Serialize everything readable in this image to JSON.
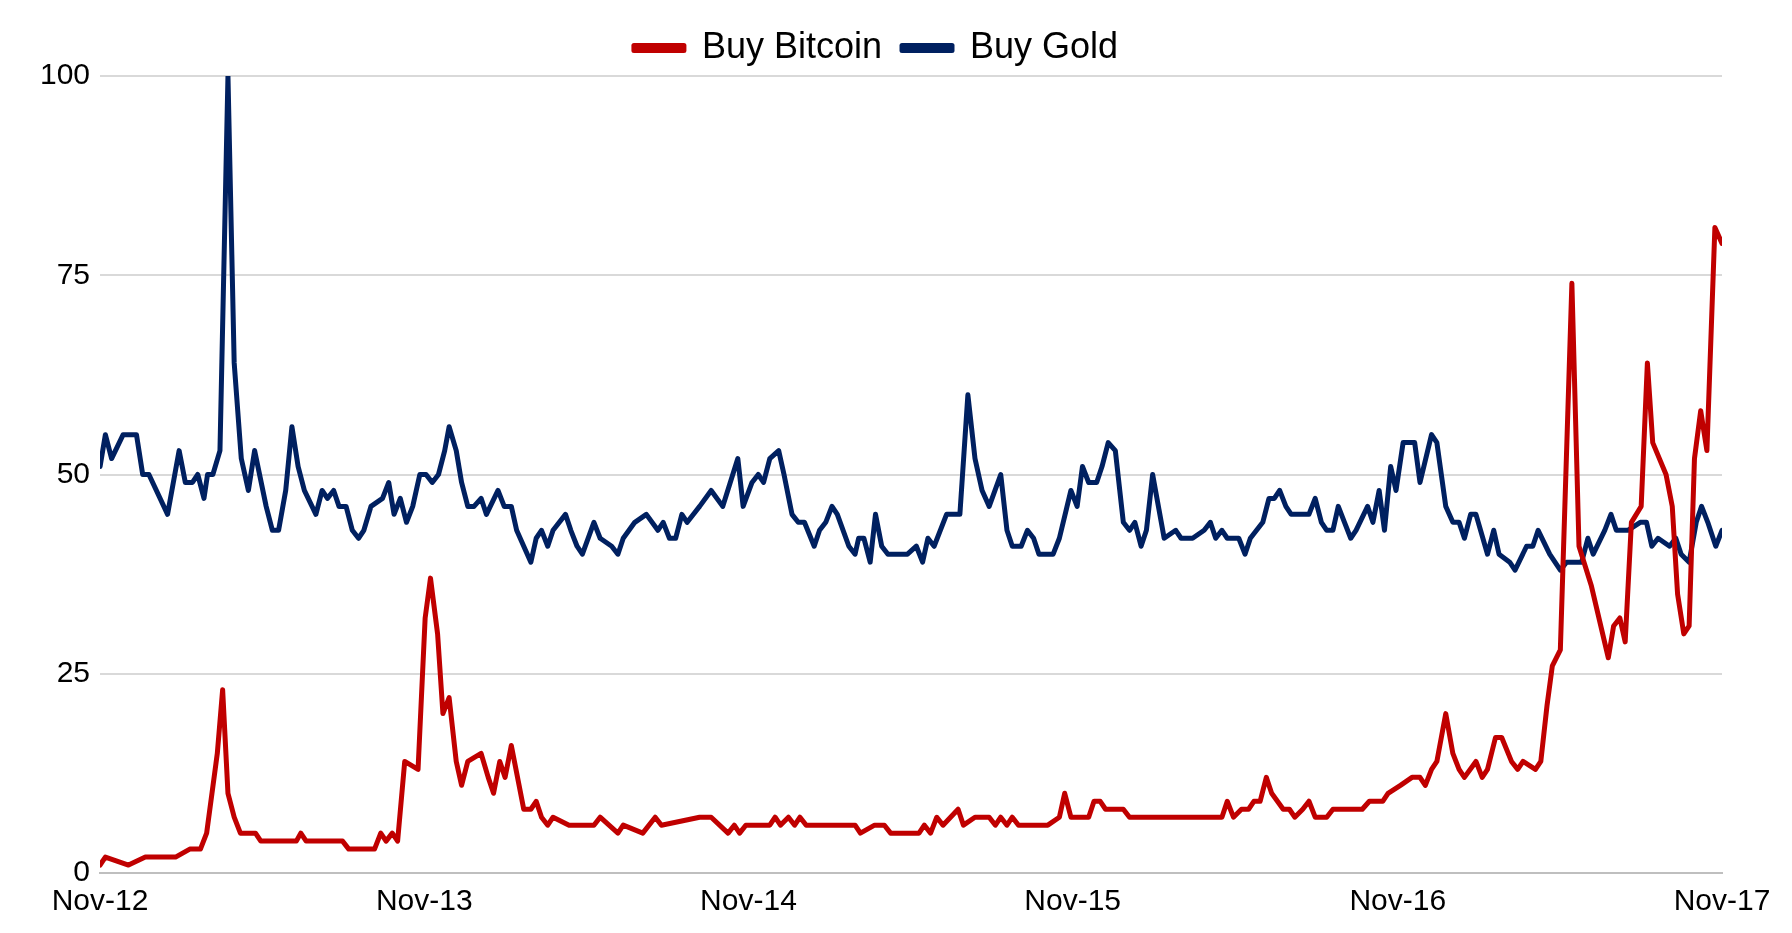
{
  "chart_data": {
    "type": "line",
    "ylim": [
      0,
      100
    ],
    "yticks": [
      0,
      25,
      50,
      75,
      100
    ],
    "xlim": [
      "2012-11-01",
      "2017-11-01"
    ],
    "xticks": [
      {
        "value": "2012-11-01",
        "label": "Nov-12"
      },
      {
        "value": "2013-11-01",
        "label": "Nov-13"
      },
      {
        "value": "2014-11-01",
        "label": "Nov-14"
      },
      {
        "value": "2015-11-01",
        "label": "Nov-15"
      },
      {
        "value": "2016-11-01",
        "label": "Nov-16"
      },
      {
        "value": "2017-11-01",
        "label": "Nov-17"
      }
    ],
    "grid": "y",
    "legend": "top",
    "marker": "none",
    "line_style": "solid",
    "series": [
      {
        "name": "Buy Bitcoin",
        "color": "#c00000",
        "x": [
          "2012-11-01",
          "2012-11-07",
          "2012-12-03",
          "2012-12-22",
          "2013-01-05",
          "2013-01-25",
          "2013-02-10",
          "2013-02-22",
          "2013-03-01",
          "2013-03-13",
          "2013-03-19",
          "2013-03-25",
          "2013-04-01",
          "2013-04-08",
          "2013-04-25",
          "2013-05-01",
          "2013-06-10",
          "2013-06-15",
          "2013-06-21",
          "2013-08-01",
          "2013-08-08",
          "2013-09-06",
          "2013-09-13",
          "2013-09-19",
          "2013-09-26",
          "2013-10-02",
          "2013-10-10",
          "2013-10-25",
          "2013-11-02",
          "2013-11-08",
          "2013-11-16",
          "2013-11-22",
          "2013-11-29",
          "2013-12-07",
          "2013-12-13",
          "2013-12-20",
          "2014-01-04",
          "2014-01-12",
          "2014-01-18",
          "2014-01-25",
          "2014-01-31",
          "2014-02-07",
          "2014-02-21",
          "2014-03-01",
          "2014-03-07",
          "2014-03-13",
          "2014-03-20",
          "2014-03-26",
          "2014-04-13",
          "2014-05-11",
          "2014-05-18",
          "2014-06-07",
          "2014-06-13",
          "2014-07-05",
          "2014-07-19",
          "2014-07-26",
          "2014-09-07",
          "2014-09-20",
          "2014-10-09",
          "2014-10-16",
          "2014-10-22",
          "2014-10-29",
          "2014-11-25",
          "2014-12-01",
          "2014-12-07",
          "2014-12-16",
          "2014-12-23",
          "2014-12-29",
          "2015-01-05",
          "2015-03-01",
          "2015-03-07",
          "2015-03-23",
          "2015-04-03",
          "2015-04-10",
          "2015-05-12",
          "2015-05-18",
          "2015-05-25",
          "2015-06-01",
          "2015-06-08",
          "2015-06-25",
          "2015-07-01",
          "2015-07-14",
          "2015-07-30",
          "2015-08-06",
          "2015-08-12",
          "2015-08-19",
          "2015-08-25",
          "2015-09-01",
          "2015-10-04",
          "2015-10-17",
          "2015-10-23",
          "2015-10-30",
          "2015-11-19",
          "2015-11-25",
          "2015-12-02",
          "2015-12-08",
          "2015-12-28",
          "2016-01-04",
          "2016-04-17",
          "2016-04-23",
          "2016-04-30",
          "2016-05-09",
          "2016-05-17",
          "2016-05-23",
          "2016-05-30",
          "2016-06-06",
          "2016-06-12",
          "2016-06-25",
          "2016-07-02",
          "2016-07-08",
          "2016-07-17",
          "2016-07-24",
          "2016-07-31",
          "2016-08-13",
          "2016-08-20",
          "2016-09-22",
          "2016-09-30",
          "2016-10-15",
          "2016-10-21",
          "2016-11-04",
          "2016-11-17",
          "2016-11-26",
          "2016-12-02",
          "2016-12-09",
          "2016-12-15",
          "2016-12-25",
          "2017-01-02",
          "2017-01-09",
          "2017-01-15",
          "2017-01-28",
          "2017-02-04",
          "2017-02-10",
          "2017-02-19",
          "2017-02-26",
          "2017-03-09",
          "2017-03-16",
          "2017-03-22",
          "2017-04-05",
          "2017-04-11",
          "2017-04-18",
          "2017-04-24",
          "2017-05-03",
          "2017-05-16",
          "2017-05-24",
          "2017-06-07",
          "2017-06-26",
          "2017-07-02",
          "2017-07-09",
          "2017-07-15",
          "2017-07-22",
          "2017-08-02",
          "2017-08-09",
          "2017-08-15",
          "2017-08-30",
          "2017-09-06",
          "2017-09-12",
          "2017-09-19",
          "2017-09-25",
          "2017-10-01",
          "2017-10-08",
          "2017-10-15",
          "2017-10-24",
          "2017-11-01"
        ],
        "values": [
          1,
          2,
          1,
          2,
          2,
          2,
          3,
          3,
          5,
          15,
          23,
          10,
          7,
          5,
          5,
          4,
          4,
          5,
          4,
          4,
          3,
          3,
          5,
          4,
          5,
          4,
          14,
          13,
          32,
          37,
          30,
          20,
          22,
          14,
          11,
          14,
          15,
          12,
          10,
          14,
          12,
          16,
          8,
          8,
          9,
          7,
          6,
          7,
          6,
          6,
          7,
          5,
          6,
          5,
          7,
          6,
          7,
          7,
          5,
          6,
          5,
          6,
          6,
          7,
          6,
          7,
          6,
          7,
          6,
          6,
          5,
          6,
          6,
          5,
          5,
          6,
          5,
          7,
          6,
          8,
          6,
          7,
          7,
          6,
          7,
          6,
          7,
          6,
          6,
          7,
          10,
          7,
          7,
          9,
          9,
          8,
          8,
          7,
          7,
          9,
          7,
          8,
          8,
          9,
          9,
          12,
          10,
          8,
          8,
          7,
          8,
          9,
          7,
          7,
          8,
          8,
          9,
          9,
          10,
          11,
          12,
          12,
          11,
          13,
          14,
          20,
          15,
          13,
          12,
          14,
          12,
          13,
          17,
          17,
          14,
          13,
          14,
          13,
          14,
          21,
          26,
          28,
          74,
          41,
          36,
          27,
          31,
          32,
          29,
          44,
          46,
          64,
          54,
          50,
          46,
          35,
          30,
          31,
          52,
          58,
          53,
          81,
          79
        ]
      },
      {
        "name": "Buy Gold",
        "color": "#002060",
        "x": [
          "2012-11-01",
          "2012-11-07",
          "2012-11-14",
          "2012-11-27",
          "2012-12-12",
          "2012-12-19",
          "2012-12-26",
          "2013-01-16",
          "2013-01-29",
          "2013-02-05",
          "2013-02-13",
          "2013-02-19",
          "2013-02-26",
          "2013-03-02",
          "2013-03-08",
          "2013-03-16",
          "2013-03-25",
          "2013-04-01",
          "2013-04-09",
          "2013-04-17",
          "2013-04-24",
          "2013-05-07",
          "2013-05-14",
          "2013-05-21",
          "2013-05-29",
          "2013-06-05",
          "2013-06-12",
          "2013-06-19",
          "2013-07-02",
          "2013-07-09",
          "2013-07-15",
          "2013-07-22",
          "2013-07-28",
          "2013-08-05",
          "2013-08-12",
          "2013-08-19",
          "2013-08-25",
          "2013-09-02",
          "2013-09-15",
          "2013-09-22",
          "2013-09-28",
          "2013-10-05",
          "2013-10-12",
          "2013-10-19",
          "2013-10-27",
          "2013-11-03",
          "2013-11-10",
          "2013-11-17",
          "2013-11-24",
          "2013-11-29",
          "2013-12-07",
          "2013-12-13",
          "2013-12-20",
          "2013-12-27",
          "2014-01-04",
          "2014-01-10",
          "2014-01-23",
          "2014-01-30",
          "2014-02-07",
          "2014-02-13",
          "2014-03-01",
          "2014-03-07",
          "2014-03-13",
          "2014-03-20",
          "2014-03-26",
          "2014-04-09",
          "2014-04-15",
          "2014-04-22",
          "2014-04-28",
          "2014-05-11",
          "2014-05-18",
          "2014-05-31",
          "2014-06-07",
          "2014-06-13",
          "2014-06-26",
          "2014-07-09",
          "2014-07-22",
          "2014-07-28",
          "2014-08-04",
          "2014-08-11",
          "2014-08-18",
          "2014-08-24",
          "2014-09-07",
          "2014-09-20",
          "2014-10-03",
          "2014-10-20",
          "2014-10-26",
          "2014-11-05",
          "2014-11-12",
          "2014-11-18",
          "2014-11-25",
          "2014-12-05",
          "2014-12-11",
          "2014-12-20",
          "2014-12-27",
          "2015-01-03",
          "2015-01-14",
          "2015-01-20",
          "2015-01-27",
          "2015-02-03",
          "2015-02-09",
          "2015-02-22",
          "2015-03-01",
          "2015-03-05",
          "2015-03-11",
          "2015-03-18",
          "2015-03-24",
          "2015-03-31",
          "2015-04-07",
          "2015-04-29",
          "2015-05-09",
          "2015-05-16",
          "2015-05-22",
          "2015-05-29",
          "2015-06-12",
          "2015-06-27",
          "2015-07-06",
          "2015-07-14",
          "2015-07-22",
          "2015-07-30",
          "2015-08-12",
          "2015-08-19",
          "2015-08-25",
          "2015-09-04",
          "2015-09-11",
          "2015-09-18",
          "2015-09-24",
          "2015-10-10",
          "2015-10-17",
          "2015-10-30",
          "2015-11-06",
          "2015-11-12",
          "2015-11-19",
          "2015-11-28",
          "2015-12-04",
          "2015-12-11",
          "2015-12-19",
          "2015-12-28",
          "2016-01-04",
          "2016-01-10",
          "2016-01-17",
          "2016-01-23",
          "2016-01-30",
          "2016-02-12",
          "2016-02-25",
          "2016-03-02",
          "2016-03-15",
          "2016-03-28",
          "2016-04-04",
          "2016-04-10",
          "2016-04-17",
          "2016-04-23",
          "2016-05-06",
          "2016-05-13",
          "2016-05-19",
          "2016-06-02",
          "2016-06-09",
          "2016-06-15",
          "2016-06-21",
          "2016-06-28",
          "2016-07-04",
          "2016-07-24",
          "2016-07-31",
          "2016-08-07",
          "2016-08-13",
          "2016-08-20",
          "2016-08-26",
          "2016-09-02",
          "2016-09-09",
          "2016-09-15",
          "2016-09-28",
          "2016-10-04",
          "2016-10-11",
          "2016-10-17",
          "2016-10-24",
          "2016-10-30",
          "2016-11-07",
          "2016-11-20",
          "2016-11-26",
          "2016-12-09",
          "2016-12-15",
          "2016-12-25",
          "2017-01-02",
          "2017-01-09",
          "2017-01-15",
          "2017-01-22",
          "2017-01-28",
          "2017-02-10",
          "2017-02-17",
          "2017-02-23",
          "2017-03-07",
          "2017-03-13",
          "2017-03-26",
          "2017-04-02",
          "2017-04-08",
          "2017-04-21",
          "2017-05-03",
          "2017-05-10",
          "2017-05-27",
          "2017-06-03",
          "2017-06-09",
          "2017-06-22",
          "2017-06-29",
          "2017-07-05",
          "2017-07-18",
          "2017-08-01",
          "2017-08-08",
          "2017-08-14",
          "2017-08-21",
          "2017-09-03",
          "2017-09-10",
          "2017-09-16",
          "2017-09-25",
          "2017-10-03",
          "2017-10-09",
          "2017-10-16",
          "2017-10-25",
          "2017-11-01"
        ],
        "values": [
          51,
          55,
          52,
          55,
          55,
          50,
          50,
          45,
          53,
          49,
          49,
          50,
          47,
          50,
          50,
          53,
          100,
          64,
          52,
          48,
          53,
          46,
          43,
          43,
          48,
          56,
          51,
          48,
          45,
          48,
          47,
          48,
          46,
          46,
          43,
          42,
          43,
          46,
          47,
          49,
          45,
          47,
          44,
          46,
          50,
          50,
          49,
          50,
          53,
          56,
          53,
          49,
          46,
          46,
          47,
          45,
          48,
          46,
          46,
          43,
          39,
          42,
          43,
          41,
          43,
          45,
          43,
          41,
          40,
          44,
          42,
          41,
          40,
          42,
          44,
          45,
          43,
          44,
          42,
          42,
          45,
          44,
          46,
          48,
          46,
          52,
          46,
          49,
          50,
          49,
          52,
          53,
          50,
          45,
          44,
          44,
          41,
          43,
          44,
          46,
          45,
          41,
          40,
          42,
          42,
          39,
          45,
          41,
          40,
          40,
          41,
          39,
          42,
          41,
          45,
          45,
          60,
          52,
          48,
          46,
          50,
          43,
          41,
          41,
          43,
          42,
          40,
          40,
          42,
          48,
          46,
          51,
          49,
          49,
          51,
          54,
          53,
          44,
          43,
          44,
          41,
          43,
          50,
          42,
          43,
          42,
          42,
          43,
          44,
          42,
          43,
          42,
          42,
          40,
          42,
          44,
          47,
          47,
          48,
          46,
          45,
          45,
          47,
          44,
          43,
          43,
          46,
          44,
          42,
          43,
          46,
          44,
          48,
          43,
          51,
          48,
          54,
          54,
          49,
          55,
          54,
          46,
          44,
          44,
          42,
          45,
          45,
          40,
          43,
          40,
          39,
          38,
          41,
          41,
          43,
          40,
          38,
          39,
          39,
          42,
          40,
          43,
          45,
          43,
          43,
          44,
          44,
          41,
          42,
          41,
          42,
          40,
          39,
          44,
          46,
          44,
          41,
          43
        ]
      }
    ]
  }
}
